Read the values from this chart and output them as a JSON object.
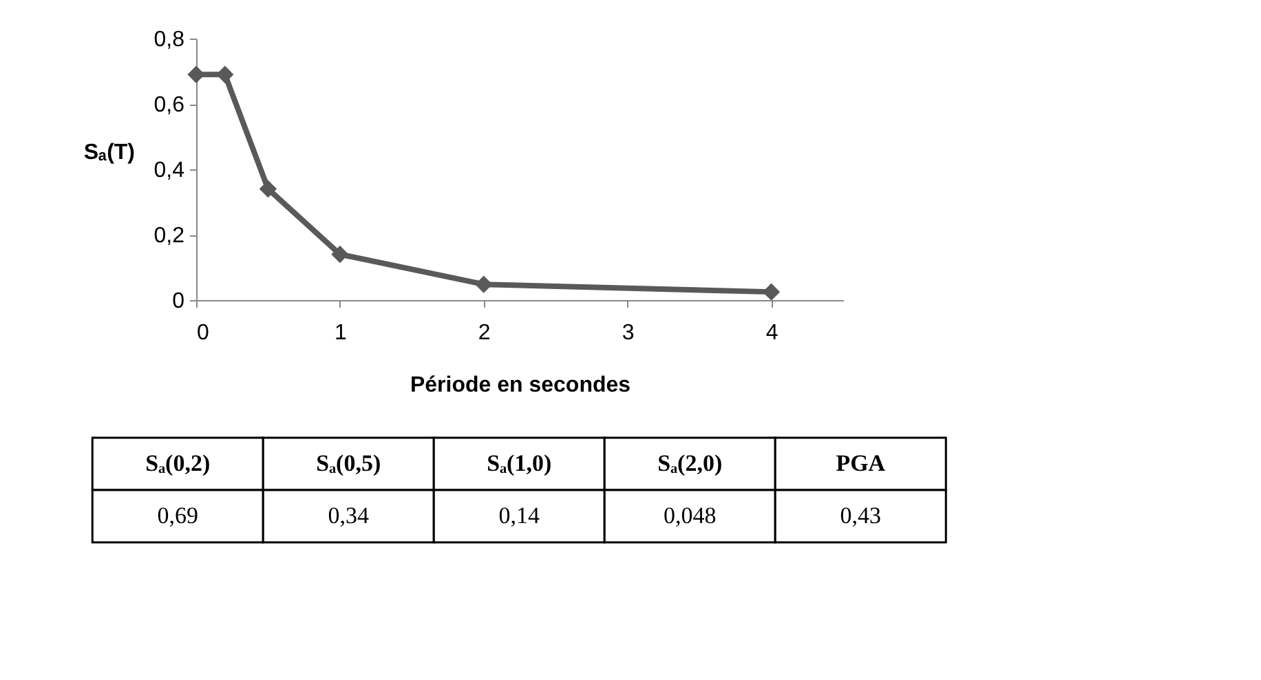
{
  "chart_data": {
    "type": "line",
    "xlabel": "Période en secondes",
    "ylabel": "Sₐ(T)",
    "x": [
      0,
      0.2,
      0.5,
      1,
      2,
      4
    ],
    "series": [
      {
        "color": "#595959",
        "values": [
          0.69,
          0.69,
          0.34,
          0.14,
          0.048,
          0.025
        ]
      }
    ],
    "xlim": [
      0,
      4.5
    ],
    "xticks": [
      0,
      1,
      2,
      3,
      4
    ],
    "ylim": [
      0,
      0.8
    ],
    "yticks": [
      0,
      {
        "value": 0.2,
        "label": "0,2"
      },
      {
        "value": 0.4,
        "label": "0,4"
      },
      {
        "value": 0.6,
        "label": "0,6"
      },
      {
        "value": 0.8,
        "label": "0,8"
      }
    ],
    "grid": false,
    "marker": "diamond",
    "line_style": "solid",
    "annotations": [
      "Sₐ(0,2)",
      "Sₐ(0,5)",
      "Sₐ(1,0)",
      "Sₐ(2,0)",
      "PGA",
      "0,69",
      "0,34",
      "0,14",
      "0,048",
      "0,43"
    ]
  }
}
